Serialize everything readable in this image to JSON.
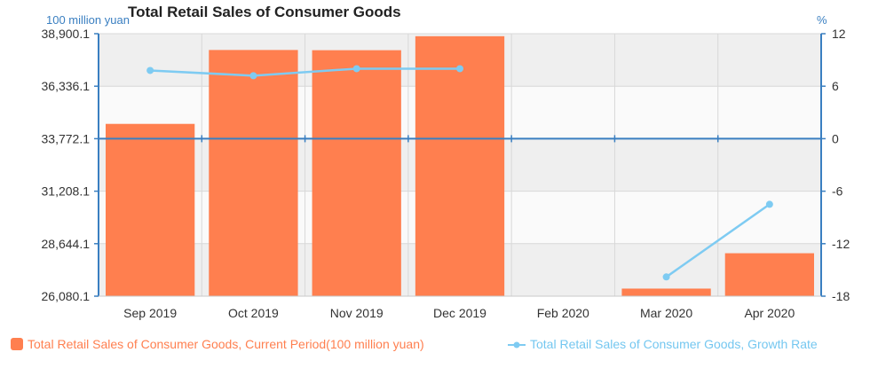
{
  "chart_data": {
    "type": "bar",
    "title": "Total Retail Sales of Consumer Goods",
    "left_axis_unit": "100 million yuan",
    "right_axis_unit": "%",
    "categories": [
      "Sep 2019",
      "Oct 2019",
      "Nov 2019",
      "Dec 2019",
      "Feb 2020",
      "Mar 2020",
      "Apr 2020"
    ],
    "left_ticks": [
      "38,900.1",
      "36,336.1",
      "33,772.1",
      "31,208.1",
      "28,644.1",
      "26,080.1"
    ],
    "right_ticks": [
      "12",
      "6",
      "0",
      "-6",
      "-12",
      "-18"
    ],
    "ylim_left": [
      26080.1,
      38900.1
    ],
    "ylim_right": [
      -18,
      12
    ],
    "grid": true,
    "legend_position": "bottom",
    "series": [
      {
        "name": "Total Retail Sales of Consumer Goods, Current Period(100 million yuan)",
        "type": "bar",
        "axis": "left",
        "color": "#ff7f4f",
        "values": [
          34494.9,
          38104.3,
          38093.8,
          38776.7,
          null,
          26449.9,
          28177.6
        ]
      },
      {
        "name": "Total Retail Sales of Consumer Goods, Growth Rate",
        "type": "line",
        "axis": "right",
        "color": "#7ecbf2",
        "values": [
          7.8,
          7.2,
          8.0,
          8.0,
          null,
          -15.8,
          -7.5
        ]
      }
    ]
  }
}
